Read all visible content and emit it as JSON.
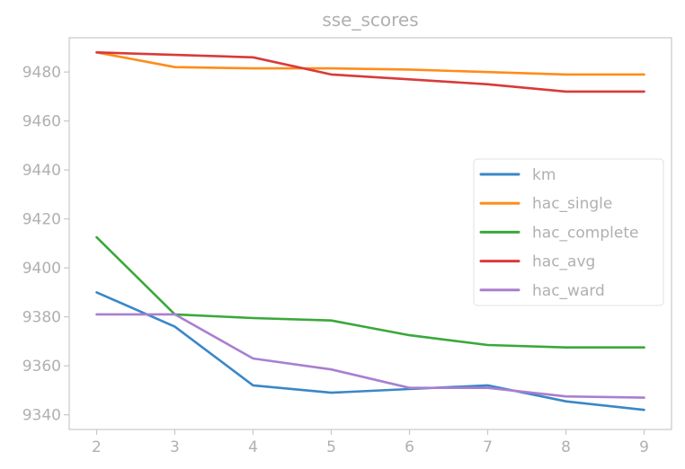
{
  "chart_data": {
    "type": "line",
    "title": "sse_scores",
    "xlabel": "",
    "ylabel": "",
    "x": [
      2,
      3,
      4,
      5,
      6,
      7,
      8,
      9
    ],
    "xlim": [
      1.65,
      9.35
    ],
    "ylim": [
      9334,
      9494
    ],
    "xticks": [
      2,
      3,
      4,
      5,
      6,
      7,
      8,
      9
    ],
    "yticks": [
      9340,
      9360,
      9380,
      9400,
      9420,
      9440,
      9460,
      9480
    ],
    "grid": false,
    "legend_position": "center-right",
    "series": [
      {
        "name": "km",
        "color": "#3a87c8",
        "values": [
          9390,
          9376,
          9352,
          9349,
          9350.5,
          9352,
          9345.5,
          9342
        ]
      },
      {
        "name": "hac_single",
        "color": "#ff8c1a",
        "values": [
          9488,
          9482,
          9481.5,
          9481.5,
          9481,
          9480,
          9479,
          9479
        ]
      },
      {
        "name": "hac_complete",
        "color": "#3aa83a",
        "values": [
          9412.5,
          9381,
          9379.5,
          9378.5,
          9372.5,
          9368.5,
          9367.5,
          9367.5
        ]
      },
      {
        "name": "hac_avg",
        "color": "#d93a3a",
        "values": [
          9488,
          9487,
          9486,
          9479,
          9477,
          9475,
          9472,
          9472
        ]
      },
      {
        "name": "hac_ward",
        "color": "#a97fd0",
        "values": [
          9381,
          9381,
          9363,
          9358.5,
          9351,
          9351,
          9347.5,
          9347
        ]
      }
    ]
  }
}
